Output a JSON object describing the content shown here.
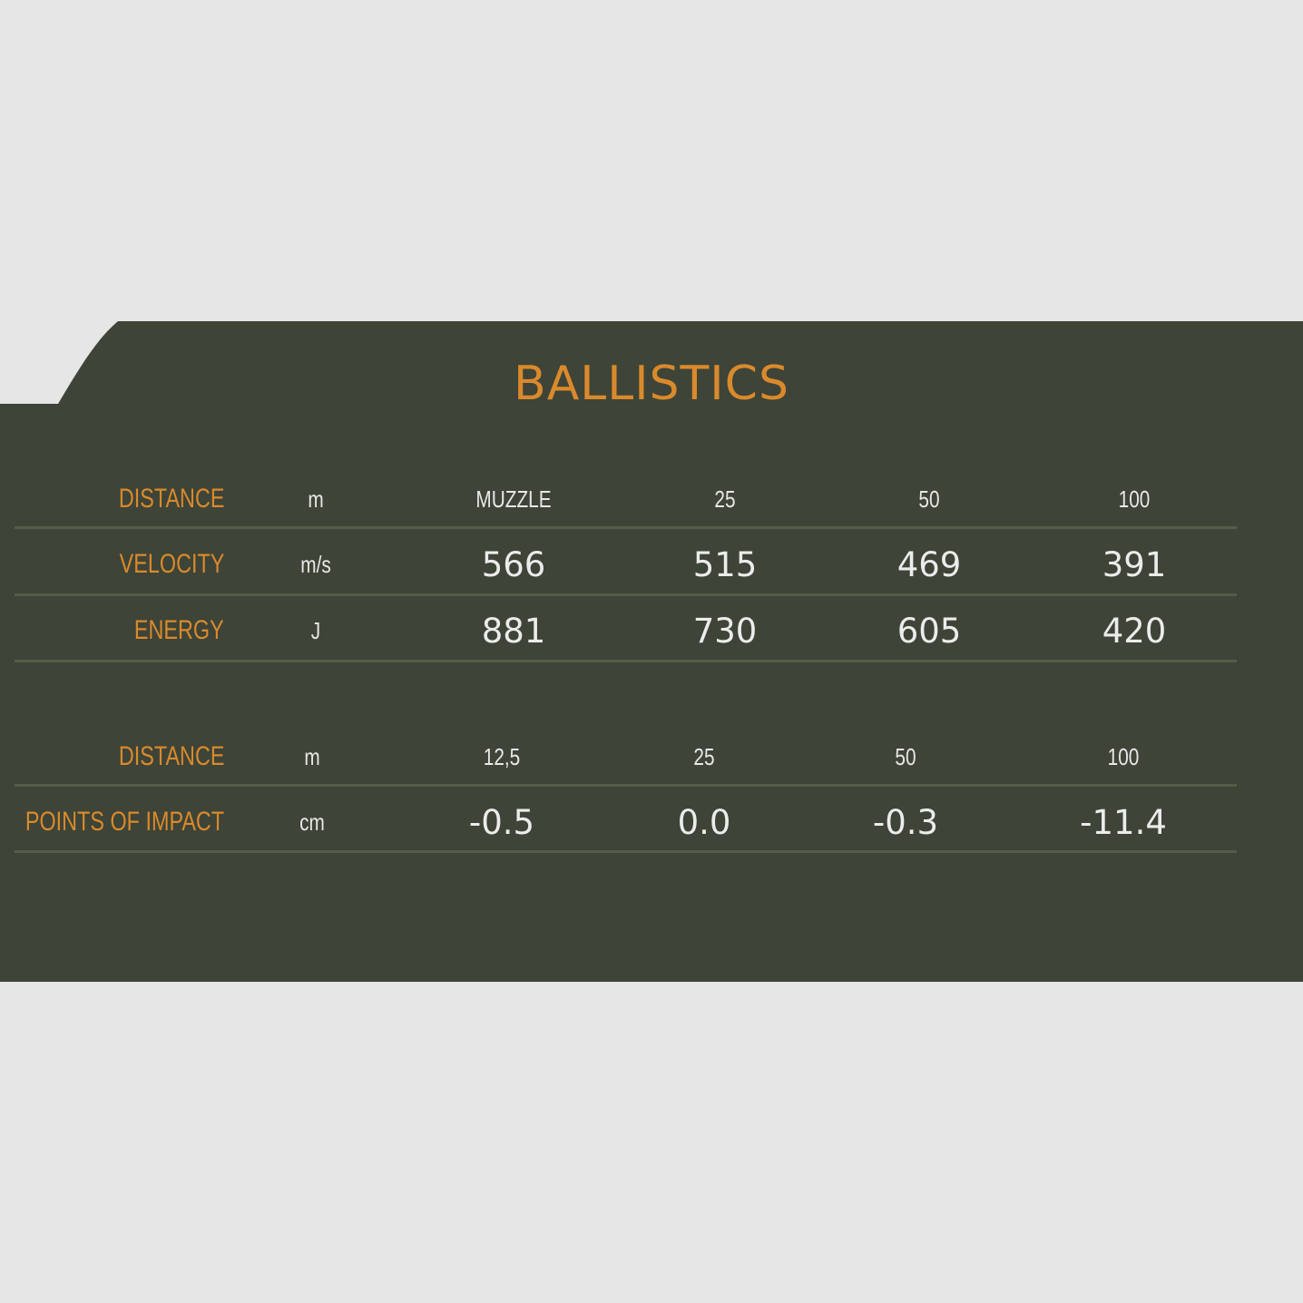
{
  "title": "BALLISTICS",
  "colors": {
    "panel": "#3e4437",
    "accent": "#d98a2c",
    "background": "#e6e6e6",
    "text": "#ececec"
  },
  "table1": {
    "header": {
      "label": "DISTANCE",
      "unit": "m",
      "columns": [
        "MUZZLE",
        "25",
        "50",
        "100"
      ]
    },
    "rows": [
      {
        "label": "VELOCITY",
        "unit": "m/s",
        "values": [
          "566",
          "515",
          "469",
          "391"
        ]
      },
      {
        "label": "ENERGY",
        "unit": "J",
        "values": [
          "881",
          "730",
          "605",
          "420"
        ]
      }
    ]
  },
  "table2": {
    "header": {
      "label": "DISTANCE",
      "unit": "m",
      "columns": [
        "12,5",
        "25",
        "50",
        "100"
      ]
    },
    "rows": [
      {
        "label": "POINTS OF IMPACT",
        "unit": "cm",
        "values": [
          "-0.5",
          "0.0",
          "-0.3",
          "-11.4"
        ]
      }
    ]
  }
}
